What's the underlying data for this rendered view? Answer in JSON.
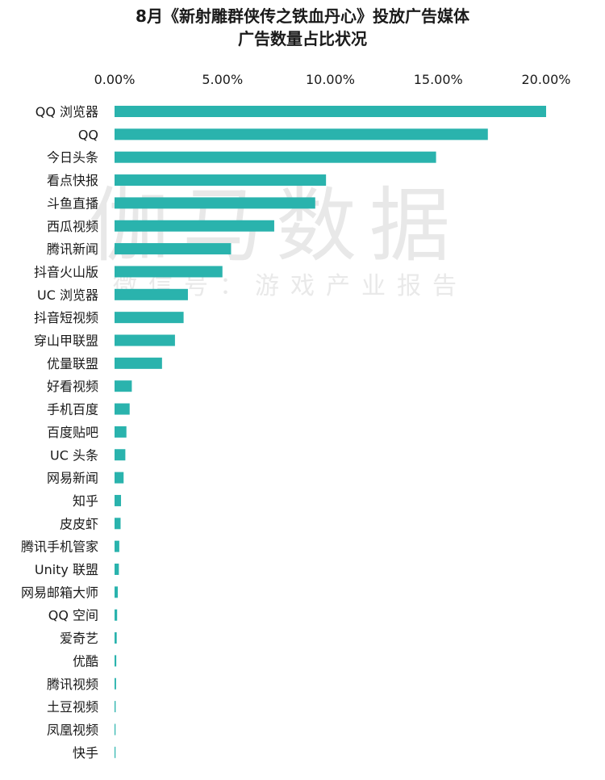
{
  "chart_data": {
    "type": "bar",
    "orientation": "horizontal",
    "title_lines": [
      "8月《新射雕群侠传之铁血丹心》投放广告媒体",
      "广告数量占比状况"
    ],
    "x_ticks": [
      "0.00%",
      "5.00%",
      "10.00%",
      "15.00%",
      "20.00%"
    ],
    "xlim": [
      0,
      20
    ],
    "x_axis_position": "top",
    "grid": false,
    "legend": "none",
    "bar_color": "#2ab3ad",
    "categories": [
      "QQ 浏览器",
      "QQ",
      "今日头条",
      "看点快报",
      "斗鱼直播",
      "西瓜视频",
      "腾讯新闻",
      "抖音火山版",
      "UC 浏览器",
      "抖音短视频",
      "穿山甲联盟",
      "优量联盟",
      "好看视频",
      "手机百度",
      "百度贴吧",
      "UC 头条",
      "网易新闻",
      "知乎",
      "皮皮虾",
      "腾讯手机管家",
      "Unity 联盟",
      "网易邮箱大师",
      "QQ 空间",
      "爱奇艺",
      "优酷",
      "腾讯视频",
      "土豆视频",
      "凤凰视频",
      "快手"
    ],
    "values": [
      20.0,
      17.3,
      14.9,
      9.8,
      9.3,
      7.4,
      5.4,
      5.0,
      3.4,
      3.2,
      2.8,
      2.2,
      0.8,
      0.7,
      0.55,
      0.5,
      0.42,
      0.3,
      0.28,
      0.22,
      0.2,
      0.15,
      0.12,
      0.1,
      0.08,
      0.07,
      0.05,
      0.04,
      0.03
    ]
  },
  "watermark": {
    "main": "伽马数据",
    "sub": "微信号：游戏产业报告"
  }
}
